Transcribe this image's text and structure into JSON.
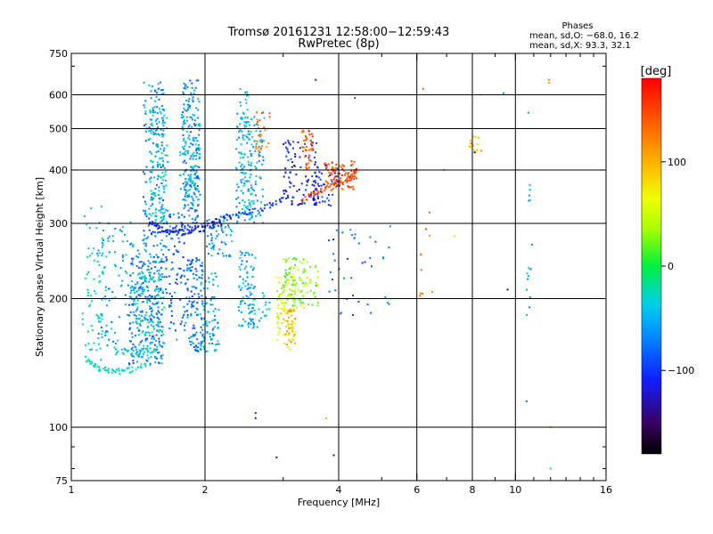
{
  "header": {
    "title_line1": "Tromsø 20161231 12:58:00−12:59:43",
    "title_line2": "RwPretec (8p)"
  },
  "stats": {
    "heading": "Phases",
    "line_o": "mean, sd,O: −68.0, 16.2",
    "line_x": "mean, sd,X:  93.3, 32.1"
  },
  "colorbar": {
    "unit_label": "[deg]",
    "vmin": -180,
    "vmax": 180,
    "ticks": [
      {
        "value": 100,
        "label": "100"
      },
      {
        "value": 0,
        "label": "0"
      },
      {
        "value": -100,
        "label": "−100"
      }
    ]
  },
  "chart_data": {
    "type": "scatter",
    "title": "Tromsø 20161231 12:58:00−12:59:43 RwPretec (8p)",
    "xlabel": "Frequency [MHz]",
    "ylabel": "Stationary phase Virtual Height [km]",
    "x_scale": "log",
    "y_scale": "log",
    "xlim": [
      1,
      16
    ],
    "ylim": [
      75,
      750
    ],
    "grid": true,
    "color_encodes": "phase [deg]",
    "x_ticks": [
      {
        "value": 1,
        "label": "1"
      },
      {
        "value": 2,
        "label": "2"
      },
      {
        "value": 4,
        "label": "4"
      },
      {
        "value": 6,
        "label": "6"
      },
      {
        "value": 8,
        "label": "8"
      },
      {
        "value": 10,
        "label": "10"
      },
      {
        "value": 16,
        "label": "16"
      }
    ],
    "x_minor_ticks": [
      3,
      5,
      7,
      9,
      11,
      12,
      13,
      14,
      15
    ],
    "x_grid_lines": [
      2,
      4,
      6,
      8,
      10
    ],
    "y_ticks": [
      {
        "value": 75,
        "label": "75"
      },
      {
        "value": 100,
        "label": "100"
      },
      {
        "value": 200,
        "label": "200"
      },
      {
        "value": 300,
        "label": "300"
      },
      {
        "value": 400,
        "label": "400"
      },
      {
        "value": 500,
        "label": "500"
      },
      {
        "value": 600,
        "label": "600"
      },
      {
        "value": 750,
        "label": "750"
      }
    ],
    "y_minor_ticks": [
      80,
      90,
      700
    ],
    "y_grid_lines": [
      100,
      200,
      300,
      400,
      500,
      600
    ],
    "traces": [
      {
        "f": [
          1.5,
          1.6,
          1.7,
          1.85,
          2.0,
          2.2
        ],
        "h": [
          305,
          290,
          285,
          287,
          293,
          300
        ],
        "phase": -112,
        "spread": 10
      },
      {
        "f": [
          1.5,
          1.75,
          2.0,
          2.25,
          2.5,
          2.8,
          3.1
        ],
        "h": [
          282,
          290,
          300,
          310,
          318,
          330,
          345
        ],
        "phase": -100,
        "spread": 8
      },
      {
        "f": [
          1.08,
          1.15,
          1.25,
          1.35,
          1.5
        ],
        "h": [
          145,
          137,
          135,
          136,
          140
        ],
        "phase": -30,
        "spread": 6
      },
      {
        "f": [
          1.25,
          1.4,
          1.55
        ],
        "h": [
          150,
          150,
          152
        ],
        "phase": -35,
        "spread": 6
      },
      {
        "f": [
          3.3,
          3.6,
          3.9,
          4.2,
          4.4
        ],
        "h": [
          340,
          355,
          368,
          380,
          395
        ],
        "phase": 150,
        "spread": 6
      }
    ],
    "clusters": [
      {
        "f": [
          1.06,
          1.2
        ],
        "h": [
          140,
          330
        ],
        "phase": -30,
        "count": 70
      },
      {
        "f": [
          1.15,
          1.38
        ],
        "h": [
          150,
          310
        ],
        "phase": -55,
        "count": 90
      },
      {
        "f": [
          1.35,
          1.62
        ],
        "h": [
          140,
          260
        ],
        "phase": -75,
        "count": 200
      },
      {
        "f": [
          1.38,
          1.62
        ],
        "h": [
          145,
          235
        ],
        "phase": -35,
        "count": 150
      },
      {
        "f": [
          1.45,
          1.62
        ],
        "h": [
          240,
          650
        ],
        "phase": -65,
        "count": 150
      },
      {
        "f": [
          1.5,
          1.65
        ],
        "h": [
          300,
          560
        ],
        "phase": -40,
        "count": 120
      },
      {
        "f": [
          1.62,
          1.8
        ],
        "h": [
          160,
          320
        ],
        "phase": -80,
        "count": 90
      },
      {
        "f": [
          1.8,
          1.98
        ],
        "h": [
          150,
          250
        ],
        "phase": -75,
        "count": 110
      },
      {
        "f": [
          1.78,
          1.95
        ],
        "h": [
          300,
          650
        ],
        "phase": -70,
        "count": 170
      },
      {
        "f": [
          1.75,
          1.95
        ],
        "h": [
          330,
          560
        ],
        "phase": -40,
        "count": 80
      },
      {
        "f": [
          1.95,
          2.15
        ],
        "h": [
          150,
          230
        ],
        "phase": -50,
        "count": 90
      },
      {
        "f": [
          2.0,
          2.3
        ],
        "h": [
          250,
          320
        ],
        "phase": -60,
        "count": 60
      },
      {
        "f": [
          2.35,
          2.72
        ],
        "h": [
          300,
          550
        ],
        "phase": -55,
        "count": 140
      },
      {
        "f": [
          2.4,
          2.55
        ],
        "h": [
          320,
          640
        ],
        "phase": -40,
        "count": 60
      },
      {
        "f": [
          2.6,
          2.8
        ],
        "h": [
          420,
          550
        ],
        "phase": 125,
        "count": 25
      },
      {
        "f": [
          2.38,
          2.6
        ],
        "h": [
          170,
          260
        ],
        "phase": -55,
        "count": 80
      },
      {
        "f": [
          2.5,
          2.8
        ],
        "h": [
          170,
          210
        ],
        "phase": -40,
        "count": 30
      },
      {
        "f": [
          2.9,
          3.2
        ],
        "h": [
          160,
          230
        ],
        "phase": 50,
        "count": 90
      },
      {
        "f": [
          3.0,
          3.6
        ],
        "h": [
          190,
          250
        ],
        "phase": 30,
        "count": 100
      },
      {
        "f": [
          3.0,
          3.2
        ],
        "h": [
          150,
          190
        ],
        "phase": 95,
        "count": 40
      },
      {
        "f": [
          3.0,
          3.6
        ],
        "h": [
          330,
          470
        ],
        "phase": -110,
        "count": 100
      },
      {
        "f": [
          3.3,
          3.5
        ],
        "h": [
          400,
          500
        ],
        "phase": 140,
        "count": 40
      },
      {
        "f": [
          3.7,
          4.4
        ],
        "h": [
          360,
          420
        ],
        "phase": 145,
        "count": 80
      },
      {
        "f": [
          3.5,
          4.0
        ],
        "h": [
          330,
          420
        ],
        "phase": -100,
        "count": 40
      },
      {
        "f": [
          3.8,
          5.3
        ],
        "h": [
          180,
          300
        ],
        "phase": -80,
        "count": 40
      },
      {
        "f": [
          6.0,
          6.6
        ],
        "h": [
          200,
          320
        ],
        "phase": 130,
        "count": 10
      },
      {
        "f": [
          7.8,
          8.4
        ],
        "h": [
          440,
          480
        ],
        "phase": 100,
        "count": 15
      },
      {
        "f": [
          10.6,
          10.9
        ],
        "h": [
          180,
          400
        ],
        "phase": -55,
        "count": 15
      }
    ],
    "points": [
      {
        "f": 2.6,
        "h": 105,
        "phase": -110
      },
      {
        "f": 2.6,
        "h": 108,
        "phase": -100
      },
      {
        "f": 2.9,
        "h": 85,
        "phase": -120
      },
      {
        "f": 3.9,
        "h": 86,
        "phase": -150
      },
      {
        "f": 3.75,
        "h": 105,
        "phase": 100
      },
      {
        "f": 3.55,
        "h": 650,
        "phase": -110
      },
      {
        "f": 4.35,
        "h": 590,
        "phase": -80
      },
      {
        "f": 6.2,
        "h": 620,
        "phase": 140
      },
      {
        "f": 8.35,
        "h": 600,
        "phase": 95
      },
      {
        "f": 9.4,
        "h": 605,
        "phase": -70
      },
      {
        "f": 10.7,
        "h": 545,
        "phase": -60
      },
      {
        "f": 11.9,
        "h": 640,
        "phase": 110
      },
      {
        "f": 11.9,
        "h": 650,
        "phase": 120
      },
      {
        "f": 12.0,
        "h": 80,
        "phase": -40
      },
      {
        "f": 12.0,
        "h": 100,
        "phase": 100
      },
      {
        "f": 10.6,
        "h": 115,
        "phase": -80
      },
      {
        "f": 9.6,
        "h": 210,
        "phase": -150
      },
      {
        "f": 8.1,
        "h": 440,
        "phase": -160
      },
      {
        "f": 6.9,
        "h": 400,
        "phase": 100
      },
      {
        "f": 7.3,
        "h": 280,
        "phase": 80
      }
    ]
  }
}
